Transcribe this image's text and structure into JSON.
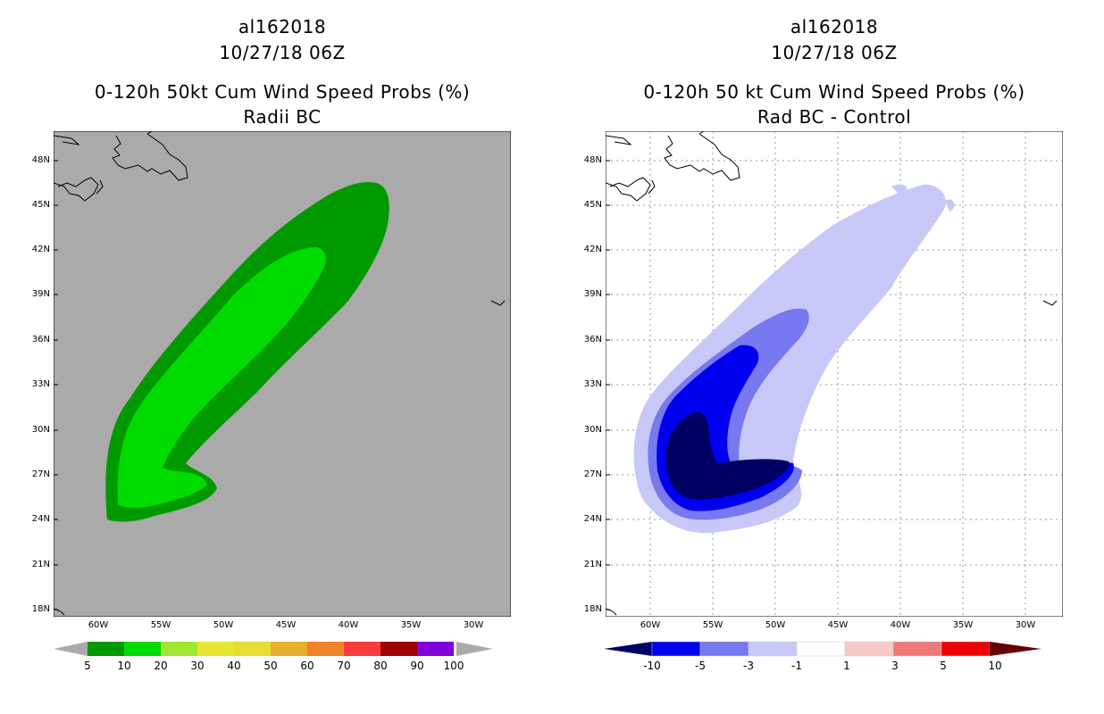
{
  "left": {
    "title_line1": "al162018",
    "title_line2": "10/27/18 06Z",
    "title_line3": "0-120h 50kt Cum Wind Speed Probs (%)",
    "title_line4": "Radii BC",
    "background_color": "#aaaaaa",
    "colorbar": {
      "labels": [
        "5",
        "10",
        "20",
        "30",
        "40",
        "50",
        "60",
        "70",
        "80",
        "90",
        "100"
      ],
      "colors": [
        "#009a00",
        "#00dc00",
        "#a0e632",
        "#e6e632",
        "#e6dc32",
        "#e6af2d",
        "#f08228",
        "#fa3c3c",
        "#a00000",
        "#8200dc"
      ]
    }
  },
  "right": {
    "title_line1": "al162018",
    "title_line2": "10/27/18 06Z",
    "title_line3": "0-120h 50 kt Cum Wind Speed Probs (%)",
    "title_line4": "Rad BC - Control",
    "background_color": "#ffffff",
    "colorbar": {
      "labels": [
        "-10",
        "-5",
        "-3",
        "-1",
        "1",
        "3",
        "5",
        "10"
      ],
      "colors": [
        "#000064",
        "#0000f0",
        "#7878f0",
        "#c8c8f8",
        "#ffffff",
        "#f8c8c8",
        "#f07878",
        "#f00000",
        "#640000"
      ]
    }
  },
  "latitudes": [
    "48N",
    "45N",
    "42N",
    "39N",
    "36N",
    "33N",
    "30N",
    "27N",
    "24N",
    "21N",
    "18N"
  ],
  "longitudes": [
    "60W",
    "55W",
    "50W",
    "45W",
    "40W",
    "35W",
    "30W"
  ]
}
